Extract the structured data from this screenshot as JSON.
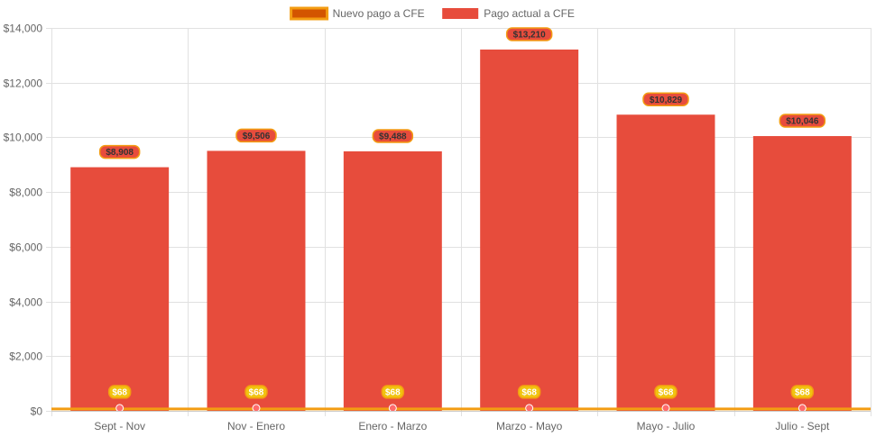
{
  "chart_data": {
    "type": "bar",
    "categories": [
      "Sept - Nov",
      "Nov - Enero",
      "Enero - Marzo",
      "Marzo - Mayo",
      "Mayo - Julio",
      "Julio - Sept"
    ],
    "series": [
      {
        "name": "Nuevo pago a CFE",
        "type": "line",
        "values": [
          68,
          68,
          68,
          68,
          68,
          68
        ],
        "labels": [
          "$68",
          "$68",
          "$68",
          "$68",
          "$68",
          "$68"
        ],
        "color": "#f39c12",
        "point_color": "#ff6b6b",
        "legend_fill": "#d35400"
      },
      {
        "name": "Pago actual a CFE",
        "type": "bar",
        "values": [
          8908,
          9506,
          9488,
          13210,
          10829,
          10046
        ],
        "labels": [
          "$8,908",
          "$9,506",
          "$9,488",
          "$13,210",
          "$10,829",
          "$10,046"
        ],
        "color": "#e74c3c",
        "label_fill": "#e74c3c",
        "label_border": "#f39c12",
        "label_text_color": "#333333"
      }
    ],
    "y_ticks": [
      "$0",
      "$2,000",
      "$4,000",
      "$6,000",
      "$8,000",
      "$10,000",
      "$12,000",
      "$14,000"
    ],
    "ylim": [
      0,
      14000
    ],
    "y_step": 2000,
    "grid": true,
    "legend_position": "top",
    "title": "",
    "xlabel": "",
    "ylabel": ""
  }
}
